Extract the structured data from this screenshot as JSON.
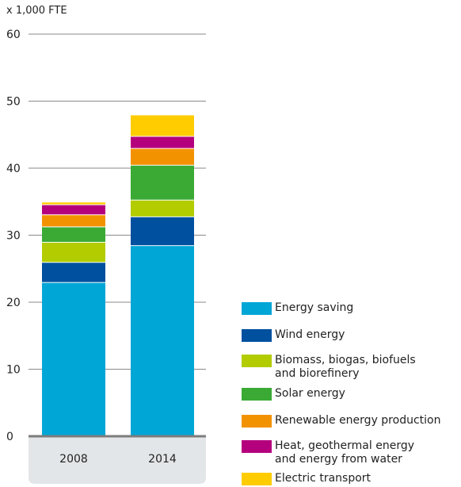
{
  "chart_data": {
    "type": "bar",
    "stacked": true,
    "unit_label": "x 1,000 FTE",
    "categories": [
      "2008",
      "2014"
    ],
    "ylim": [
      0,
      60
    ],
    "yticks": [
      "0",
      "10",
      "20",
      "30",
      "40",
      "50",
      "60"
    ],
    "series": [
      {
        "name": "Energy saving",
        "color": "#00a6d6",
        "values": [
          23,
          28.5
        ]
      },
      {
        "name": "Wind energy",
        "color": "#0050a0",
        "values": [
          3,
          4.3
        ]
      },
      {
        "name": "Biomass, biogas, biofuels and biorefinery",
        "color": "#b2cc00",
        "values": [
          3,
          2.5
        ]
      },
      {
        "name": "Solar energy",
        "color": "#3aaa35",
        "values": [
          2.3,
          5.2
        ]
      },
      {
        "name": "Renewable energy production",
        "color": "#f39200",
        "values": [
          1.8,
          2.5
        ]
      },
      {
        "name": "Heat, geothermal energy and energy from water",
        "color": "#b5007d",
        "values": [
          1.5,
          1.8
        ]
      },
      {
        "name": "Electric transport",
        "color": "#ffcc00",
        "values": [
          0.4,
          3.2
        ]
      }
    ],
    "grid": true,
    "legend": "bottom-right"
  }
}
